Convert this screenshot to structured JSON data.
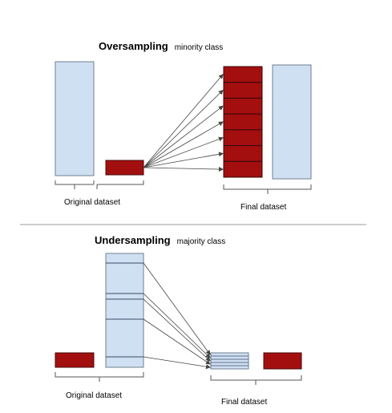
{
  "oversampling": {
    "title_bold": "Oversampling",
    "title_rest": "minority class",
    "original_label": "Original dataset",
    "final_label": "Final dataset",
    "replicated_blocks": 7
  },
  "undersampling": {
    "title_bold": "Undersampling",
    "title_rest": "majority class",
    "original_label": "Original dataset",
    "final_label": "Final dataset",
    "selected_slices": 5
  },
  "colors": {
    "majority_fill": "#cfe0f3",
    "majority_stroke": "#6f7f8f",
    "minority_fill": "#a30f0f",
    "minority_stroke": "#4a0a0a",
    "arrow": "#444444",
    "divider": "#999999",
    "brace": "#555555"
  }
}
